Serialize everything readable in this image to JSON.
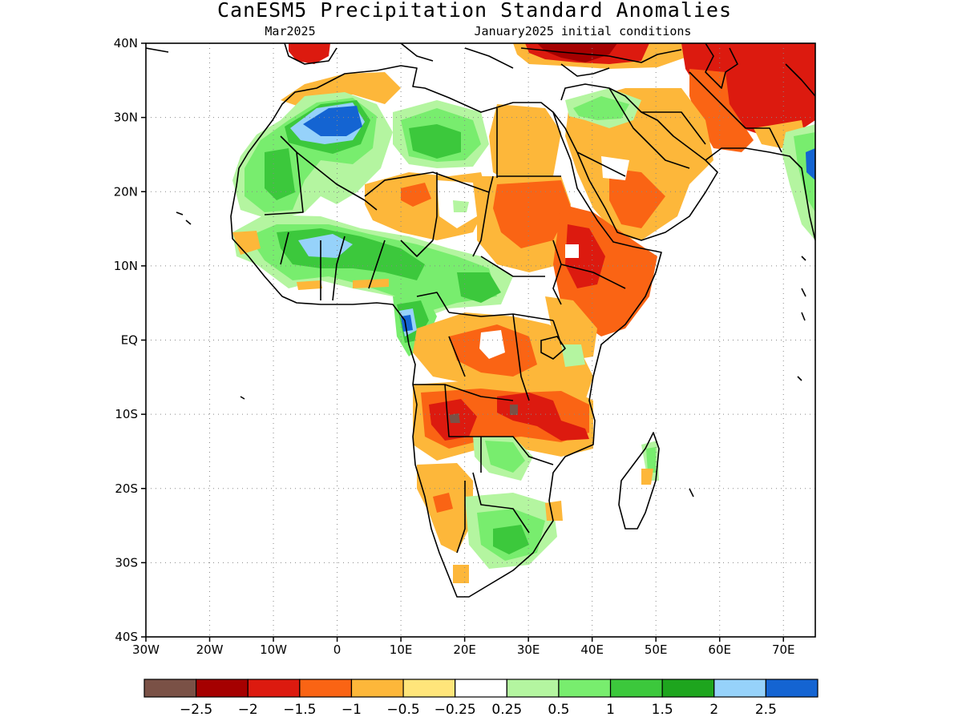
{
  "title": "CanESM5 Precipitation Standard Anomalies",
  "subtitle_left": "Mar2025",
  "subtitle_right": "January2025 initial conditions",
  "map": {
    "lon_range": [
      -30,
      75
    ],
    "lat_range": [
      -40,
      40
    ],
    "lat_ticks": [
      {
        "value": 40,
        "label": "40N"
      },
      {
        "value": 30,
        "label": "30N"
      },
      {
        "value": 20,
        "label": "20N"
      },
      {
        "value": 10,
        "label": "10N"
      },
      {
        "value": 0,
        "label": "EQ"
      },
      {
        "value": -10,
        "label": "10S"
      },
      {
        "value": -20,
        "label": "20S"
      },
      {
        "value": -30,
        "label": "30S"
      },
      {
        "value": -40,
        "label": "40S"
      }
    ],
    "lon_ticks": [
      {
        "value": -30,
        "label": "30W"
      },
      {
        "value": -20,
        "label": "20W"
      },
      {
        "value": -10,
        "label": "10W"
      },
      {
        "value": 0,
        "label": "0"
      },
      {
        "value": 10,
        "label": "10E"
      },
      {
        "value": 20,
        "label": "20E"
      },
      {
        "value": 30,
        "label": "30E"
      },
      {
        "value": 40,
        "label": "40E"
      },
      {
        "value": 50,
        "label": "50E"
      },
      {
        "value": 60,
        "label": "60E"
      },
      {
        "value": 70,
        "label": "70E"
      }
    ],
    "grid": true
  },
  "legend": {
    "colors": [
      "#7a5146",
      "#a50000",
      "#dc1a0f",
      "#fa6414",
      "#fdb73a",
      "#ffe57a",
      "#ffffff",
      "#b4f5a0",
      "#78ed6e",
      "#3cc83c",
      "#1ea51e",
      "#96d2fa",
      "#1464d2"
    ],
    "labels": [
      "−2.5",
      "−2",
      "−1.5",
      "−1",
      "−0.5",
      "−0.25",
      "0.25",
      "0.5",
      "1",
      "1.5",
      "2",
      "2.5"
    ]
  },
  "colors": {
    "land_outline": "#000000",
    "ocean": "#ffffff"
  }
}
